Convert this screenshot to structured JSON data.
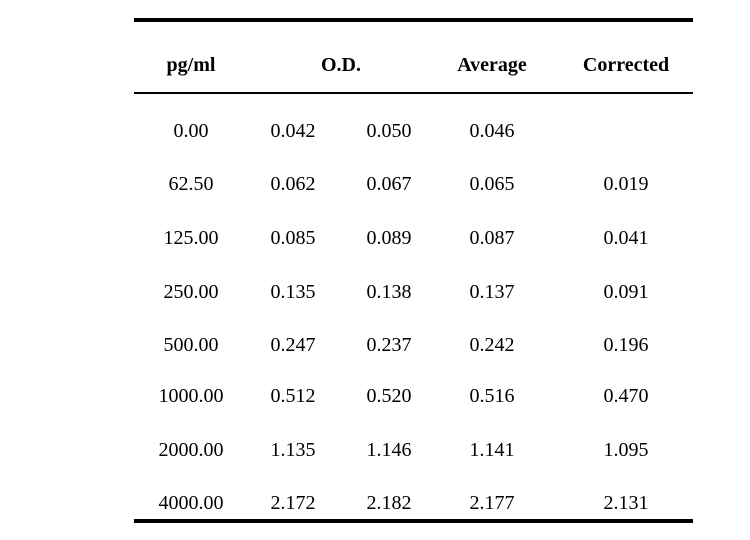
{
  "table": {
    "headers": {
      "concentration": "pg/ml",
      "od": "O.D.",
      "average": "Average",
      "corrected": "Corrected"
    },
    "rows": [
      {
        "concentration": "0.00",
        "od1": "0.042",
        "od2": "0.050",
        "average": "0.046",
        "corrected": ""
      },
      {
        "concentration": "62.50",
        "od1": "0.062",
        "od2": "0.067",
        "average": "0.065",
        "corrected": "0.019"
      },
      {
        "concentration": "125.00",
        "od1": "0.085",
        "od2": "0.089",
        "average": "0.087",
        "corrected": "0.041"
      },
      {
        "concentration": "250.00",
        "od1": "0.135",
        "od2": "0.138",
        "average": "0.137",
        "corrected": "0.091"
      },
      {
        "concentration": "500.00",
        "od1": "0.247",
        "od2": "0.237",
        "average": "0.242",
        "corrected": "0.196"
      },
      {
        "concentration": "1000.00",
        "od1": "0.512",
        "od2": "0.520",
        "average": "0.516",
        "corrected": "0.470"
      },
      {
        "concentration": "2000.00",
        "od1": "1.135",
        "od2": "1.146",
        "average": "1.141",
        "corrected": "1.095"
      },
      {
        "concentration": "4000.00",
        "od1": "2.172",
        "od2": "2.182",
        "average": "2.177",
        "corrected": "2.131"
      }
    ]
  }
}
